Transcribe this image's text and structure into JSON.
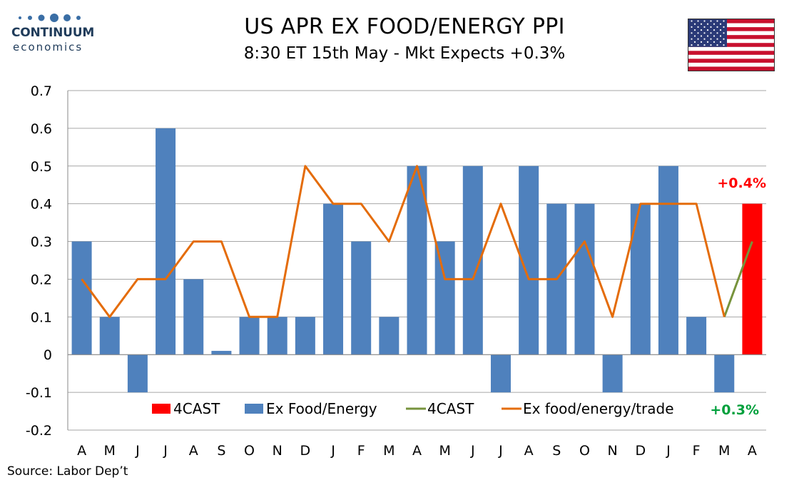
{
  "header": {
    "title": "US APR EX FOOD/ENERGY PPI",
    "subtitle": "8:30 ET 15th May - Mkt Expects +0.3%"
  },
  "logo": {
    "name": "CONTINUUM",
    "tagline": "economics",
    "dot_color": "#3a6ea5"
  },
  "flag": {
    "icon": "us-flag-icon"
  },
  "footer": {
    "source": "Source: Labor Dep’t"
  },
  "chart_data": {
    "type": "bar",
    "categories": [
      "A",
      "M",
      "J",
      "J",
      "A",
      "S",
      "O",
      "N",
      "D",
      "J",
      "F",
      "M",
      "A",
      "M",
      "J",
      "J",
      "A",
      "S",
      "O",
      "N",
      "D",
      "J",
      "F",
      "M",
      "A"
    ],
    "ylim": [
      -0.2,
      0.7
    ],
    "yticks": [
      -0.2,
      -0.1,
      0,
      0.1,
      0.2,
      0.3,
      0.4,
      0.5,
      0.6,
      0.7
    ],
    "ytick_labels": [
      "-0.2",
      "-0.1",
      "0",
      "0.1",
      "0.2",
      "0.3",
      "0.4",
      "0.5",
      "0.6",
      "0.7"
    ],
    "grid": true,
    "legend_placement": "bottom-right",
    "series": [
      {
        "name": "4CAST",
        "type": "bar",
        "color": "#ff0000",
        "values": [
          null,
          null,
          null,
          null,
          null,
          null,
          null,
          null,
          null,
          null,
          null,
          null,
          null,
          null,
          null,
          null,
          null,
          null,
          null,
          null,
          null,
          null,
          null,
          null,
          0.4
        ]
      },
      {
        "name": "Ex Food/Energy",
        "type": "bar",
        "color": "#4f81bd",
        "values": [
          0.3,
          0.1,
          -0.1,
          0.6,
          0.2,
          0.01,
          0.1,
          0.1,
          0.1,
          0.4,
          0.3,
          0.1,
          0.5,
          0.3,
          0.5,
          -0.1,
          0.5,
          0.4,
          0.4,
          -0.1,
          0.4,
          0.5,
          0.1,
          -0.1,
          null
        ]
      },
      {
        "name": "4CAST",
        "type": "line",
        "color": "#77933c",
        "values": [
          null,
          null,
          null,
          null,
          null,
          null,
          null,
          null,
          null,
          null,
          null,
          null,
          null,
          null,
          null,
          null,
          null,
          null,
          null,
          null,
          null,
          null,
          null,
          0.1,
          0.3
        ]
      },
      {
        "name": "Ex food/energy/trade",
        "type": "line",
        "color": "#e46c0a",
        "values": [
          0.2,
          0.1,
          0.2,
          0.2,
          0.3,
          0.3,
          0.1,
          0.1,
          0.5,
          0.4,
          0.4,
          0.3,
          0.5,
          0.2,
          0.2,
          0.4,
          0.2,
          0.2,
          0.3,
          0.1,
          0.4,
          0.4,
          0.4,
          0.1,
          null
        ]
      }
    ],
    "annotations": [
      {
        "text": "+0.4%",
        "color": "#ff0000"
      },
      {
        "text": "+0.3%",
        "color": "#00a03c"
      }
    ]
  }
}
